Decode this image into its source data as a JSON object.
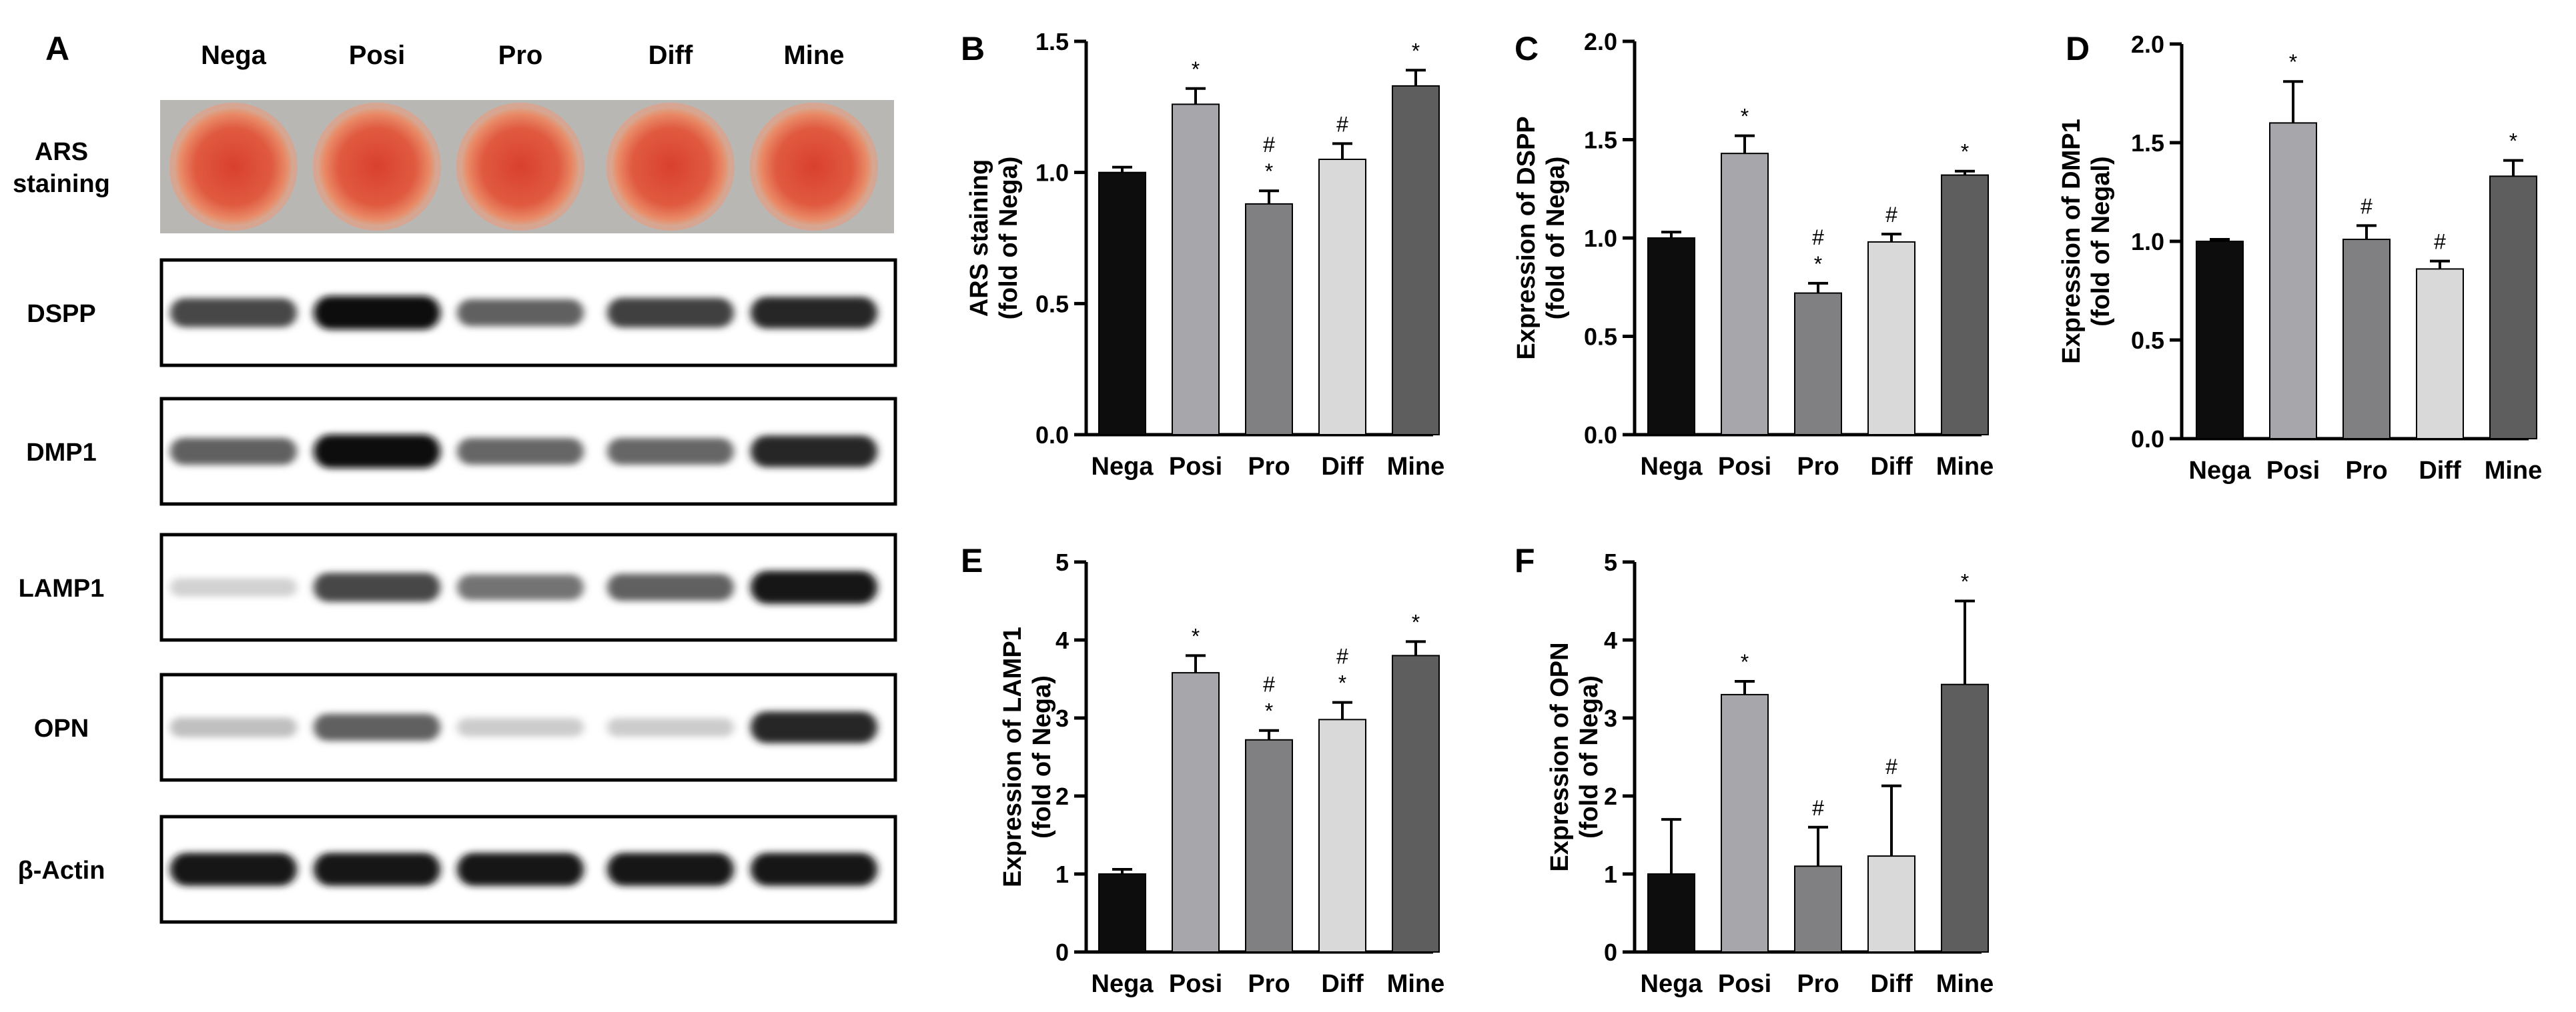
{
  "panel_a": {
    "label": "A",
    "columns": [
      "Nega",
      "Posi",
      "Pro",
      "Diff",
      "Mine"
    ],
    "rows": [
      {
        "label_lines": [
          "ARS",
          "staining"
        ],
        "kind": "plate"
      },
      {
        "label_lines": [
          "DSPP"
        ],
        "kind": "blot",
        "intensities": [
          0.72,
          0.95,
          0.62,
          0.75,
          0.85
        ]
      },
      {
        "label_lines": [
          "DMP1"
        ],
        "kind": "blot",
        "intensities": [
          0.62,
          0.95,
          0.6,
          0.6,
          0.85
        ]
      },
      {
        "label_lines": [
          "LAMP1"
        ],
        "kind": "blot",
        "intensities": [
          0.18,
          0.72,
          0.55,
          0.62,
          0.92
        ]
      },
      {
        "label_lines": [
          "OPN"
        ],
        "kind": "blot",
        "intensities": [
          0.25,
          0.62,
          0.2,
          0.2,
          0.85
        ]
      },
      {
        "label_lines": [
          "β-Actin"
        ],
        "kind": "blot",
        "intensities": [
          0.92,
          0.92,
          0.92,
          0.92,
          0.92
        ]
      }
    ]
  },
  "colors": {
    "Nega": "#0d0d0d",
    "Posi": "#a6a6ab",
    "Pro": "#808082",
    "Diff": "#d9d9d9",
    "Mine": "#5e5e5e"
  },
  "chart_data": [
    {
      "panel": "B",
      "type": "bar",
      "categories": [
        "Nega",
        "Posi",
        "Pro",
        "Diff",
        "Mine"
      ],
      "values": [
        1.0,
        1.26,
        0.88,
        1.05,
        1.33
      ],
      "errors": [
        0.02,
        0.06,
        0.05,
        0.06,
        0.06
      ],
      "annotations": [
        [],
        [
          "*"
        ],
        [
          "#",
          "*"
        ],
        [
          "#"
        ],
        [
          "*"
        ]
      ],
      "ylabel_lines": [
        "ARS staining",
        "(fold of Nega)"
      ],
      "ylim": [
        0,
        1.5
      ],
      "yticks": [
        "0.0",
        "0.5",
        "1.0",
        "1.5"
      ]
    },
    {
      "panel": "C",
      "type": "bar",
      "categories": [
        "Nega",
        "Posi",
        "Pro",
        "Diff",
        "Mine"
      ],
      "values": [
        1.0,
        1.43,
        0.72,
        0.98,
        1.32
      ],
      "errors": [
        0.03,
        0.09,
        0.05,
        0.04,
        0.02
      ],
      "annotations": [
        [],
        [
          "*"
        ],
        [
          "#",
          "*"
        ],
        [
          "#"
        ],
        [
          "*"
        ]
      ],
      "ylabel_lines": [
        "Expression of DSPP",
        "(fold of Nega)"
      ],
      "ylim": [
        0,
        2.0
      ],
      "yticks": [
        "0.0",
        "0.5",
        "1.0",
        "1.5",
        "2.0"
      ]
    },
    {
      "panel": "D",
      "type": "bar",
      "categories": [
        "Nega",
        "Posi",
        "Pro",
        "Diff",
        "Mine"
      ],
      "values": [
        1.0,
        1.6,
        1.01,
        0.86,
        1.33
      ],
      "errors": [
        0.01,
        0.21,
        0.07,
        0.04,
        0.08
      ],
      "annotations": [
        [],
        [
          "*"
        ],
        [
          "#"
        ],
        [
          "#"
        ],
        [
          "*"
        ]
      ],
      "ylabel_lines": [
        "Expression of DMP1",
        "(fold of Negal)"
      ],
      "ylim": [
        0,
        2.0
      ],
      "yticks": [
        "0.0",
        "0.5",
        "1.0",
        "1.5",
        "2.0"
      ]
    },
    {
      "panel": "E",
      "type": "bar",
      "categories": [
        "Nega",
        "Posi",
        "Pro",
        "Diff",
        "Mine"
      ],
      "values": [
        1.0,
        3.58,
        2.72,
        2.98,
        3.8
      ],
      "errors": [
        0.06,
        0.22,
        0.12,
        0.22,
        0.18
      ],
      "annotations": [
        [],
        [
          "*"
        ],
        [
          "#",
          "*"
        ],
        [
          "#",
          "*"
        ],
        [
          "*"
        ]
      ],
      "ylabel_lines": [
        "Expression of LAMP1",
        "(fold of Nega)"
      ],
      "ylim": [
        0,
        5
      ],
      "yticks": [
        "0",
        "1",
        "2",
        "3",
        "4",
        "5"
      ]
    },
    {
      "panel": "F",
      "type": "bar",
      "categories": [
        "Nega",
        "Posi",
        "Pro",
        "Diff",
        "Mine"
      ],
      "values": [
        1.0,
        3.3,
        1.1,
        1.23,
        3.43
      ],
      "errors": [
        0.7,
        0.17,
        0.5,
        0.9,
        1.07
      ],
      "annotations": [
        [],
        [
          "*"
        ],
        [
          "#"
        ],
        [
          "#"
        ],
        [
          "*"
        ]
      ],
      "ylabel_lines": [
        "Expression of OPN",
        "(fold of Nega)"
      ],
      "ylim": [
        0,
        5
      ],
      "yticks": [
        "0",
        "1",
        "2",
        "3",
        "4",
        "5"
      ]
    }
  ]
}
